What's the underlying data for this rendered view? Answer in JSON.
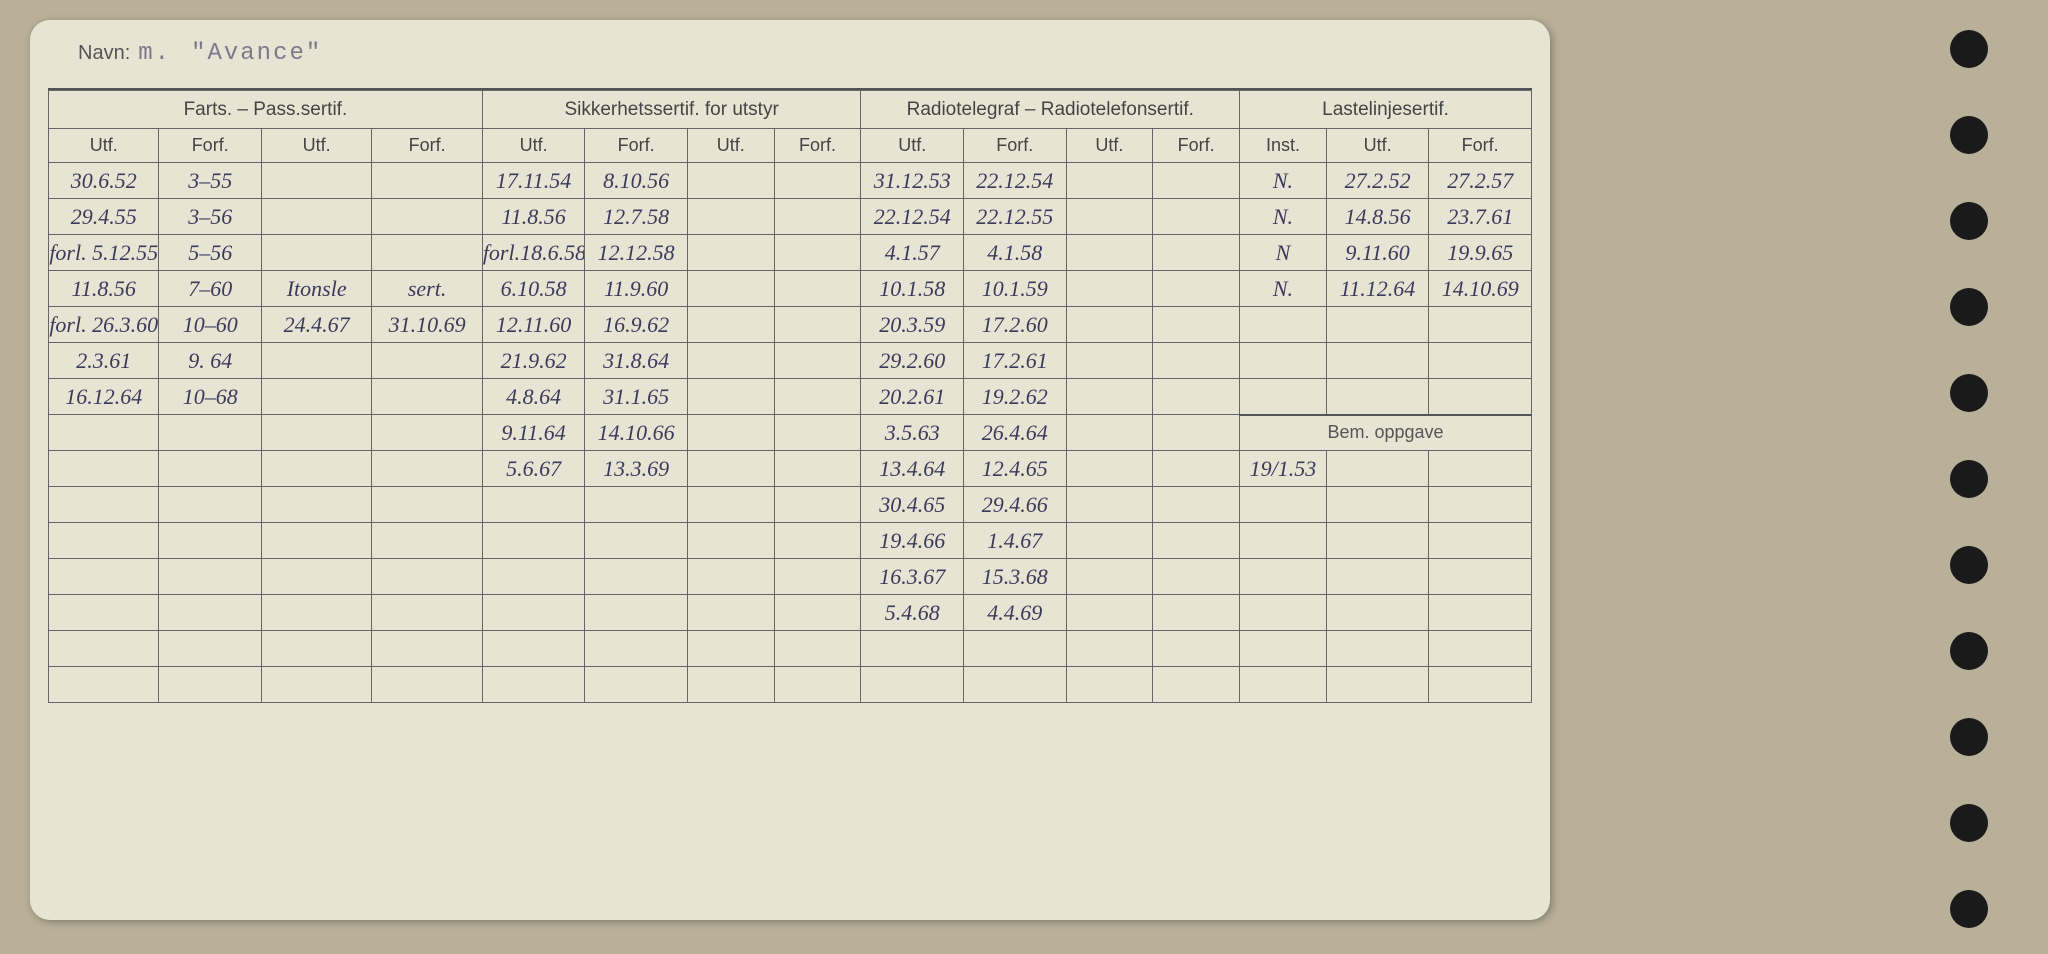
{
  "navn_label": "Navn:",
  "navn_prefix": "m.",
  "navn_value": "\"Avance\"",
  "sections": {
    "farts": "Farts. – Pass.sertif.",
    "sikkerhet": "Sikkerhetssertif. for utstyr",
    "radio": "Radiotelegraf – Radiotelefonsertif.",
    "lastelinje": "Lastelinjesertif."
  },
  "cols": {
    "utf": "Utf.",
    "forf": "Forf.",
    "inst": "Inst."
  },
  "bem_oppgave": "Bem. oppgave",
  "rows": [
    {
      "f1": "30.6.52",
      "f2": "3–55",
      "f3": "",
      "f4": "",
      "s1": "17.11.54",
      "s2": "8.10.56",
      "s3": "",
      "s4": "",
      "r1": "31.12.53",
      "r2": "22.12.54",
      "r3": "",
      "r4": "",
      "l1": "N.",
      "l2": "27.2.52",
      "l3": "27.2.57"
    },
    {
      "f1": "29.4.55",
      "f2": "3–56",
      "f3": "",
      "f4": "",
      "s1": "11.8.56",
      "s2": "12.7.58",
      "s3": "",
      "s4": "",
      "r1": "22.12.54",
      "r2": "22.12.55",
      "r3": "",
      "r4": "",
      "l1": "N.",
      "l2": "14.8.56",
      "l3": "23.7.61"
    },
    {
      "f1": "forl. 5.12.55",
      "f2": "5–56",
      "f3": "",
      "f4": "",
      "s1": "forl.18.6.58",
      "s2": "12.12.58",
      "s3": "",
      "s4": "",
      "r1": "4.1.57",
      "r2": "4.1.58",
      "r3": "",
      "r4": "",
      "l1": "N",
      "l2": "9.11.60",
      "l3": "19.9.65"
    },
    {
      "f1": "11.8.56",
      "f2": "7–60",
      "f3": "Itonsle",
      "f4": "sert.",
      "s1": "6.10.58",
      "s2": "11.9.60",
      "s3": "",
      "s4": "",
      "r1": "10.1.58",
      "r2": "10.1.59",
      "r3": "",
      "r4": "",
      "l1": "N.",
      "l2": "11.12.64",
      "l3": "14.10.69"
    },
    {
      "f1": "forl. 26.3.60",
      "f2": "10–60",
      "f3": "24.4.67",
      "f4": "31.10.69",
      "s1": "12.11.60",
      "s2": "16.9.62",
      "s3": "",
      "s4": "",
      "r1": "20.3.59",
      "r2": "17.2.60",
      "r3": "",
      "r4": "",
      "l1": "",
      "l2": "",
      "l3": ""
    },
    {
      "f1": "2.3.61",
      "f2": "9. 64",
      "f3": "",
      "f4": "",
      "s1": "21.9.62",
      "s2": "31.8.64",
      "s3": "",
      "s4": "",
      "r1": "29.2.60",
      "r2": "17.2.61",
      "r3": "",
      "r4": "",
      "l1": "",
      "l2": "",
      "l3": ""
    },
    {
      "f1": "16.12.64",
      "f2": "10–68",
      "f3": "",
      "f4": "",
      "s1": "4.8.64",
      "s2": "31.1.65",
      "s3": "",
      "s4": "",
      "r1": "20.2.61",
      "r2": "19.2.62",
      "r3": "",
      "r4": "",
      "l1": "",
      "l2": "",
      "l3": ""
    },
    {
      "f1": "",
      "f2": "",
      "f3": "",
      "f4": "",
      "s1": "9.11.64",
      "s2": "14.10.66",
      "s3": "",
      "s4": "",
      "r1": "3.5.63",
      "r2": "26.4.64",
      "r3": "",
      "r4": "",
      "bem": true
    },
    {
      "f1": "",
      "f2": "",
      "f3": "",
      "f4": "",
      "s1": "5.6.67",
      "s2": "13.3.69",
      "s3": "",
      "s4": "",
      "r1": "13.4.64",
      "r2": "12.4.65",
      "r3": "",
      "r4": "",
      "b1": "19/1.53",
      "b2": "",
      "b3": ""
    },
    {
      "f1": "",
      "f2": "",
      "f3": "",
      "f4": "",
      "s1": "",
      "s2": "",
      "s3": "",
      "s4": "",
      "r1": "30.4.65",
      "r2": "29.4.66",
      "r3": "",
      "r4": "",
      "b1": "",
      "b2": "",
      "b3": ""
    },
    {
      "f1": "",
      "f2": "",
      "f3": "",
      "f4": "",
      "s1": "",
      "s2": "",
      "s3": "",
      "s4": "",
      "r1": "19.4.66",
      "r2": "1.4.67",
      "r3": "",
      "r4": "",
      "b1": "",
      "b2": "",
      "b3": ""
    },
    {
      "f1": "",
      "f2": "",
      "f3": "",
      "f4": "",
      "s1": "",
      "s2": "",
      "s3": "",
      "s4": "",
      "r1": "16.3.67",
      "r2": "15.3.68",
      "r3": "",
      "r4": "",
      "b1": "",
      "b2": "",
      "b3": ""
    },
    {
      "f1": "",
      "f2": "",
      "f3": "",
      "f4": "",
      "s1": "",
      "s2": "",
      "s3": "",
      "s4": "",
      "r1": "5.4.68",
      "r2": "4.4.69",
      "r3": "",
      "r4": "",
      "b1": "",
      "b2": "",
      "b3": ""
    },
    {
      "f1": "",
      "f2": "",
      "f3": "",
      "f4": "",
      "s1": "",
      "s2": "",
      "s3": "",
      "s4": "",
      "r1": "",
      "r2": "",
      "r3": "",
      "r4": "",
      "b1": "",
      "b2": "",
      "b3": ""
    },
    {
      "f1": "",
      "f2": "",
      "f3": "",
      "f4": "",
      "s1": "",
      "s2": "",
      "s3": "",
      "s4": "",
      "r1": "",
      "r2": "",
      "r3": "",
      "r4": "",
      "b1": "",
      "b2": "",
      "b3": ""
    }
  ]
}
